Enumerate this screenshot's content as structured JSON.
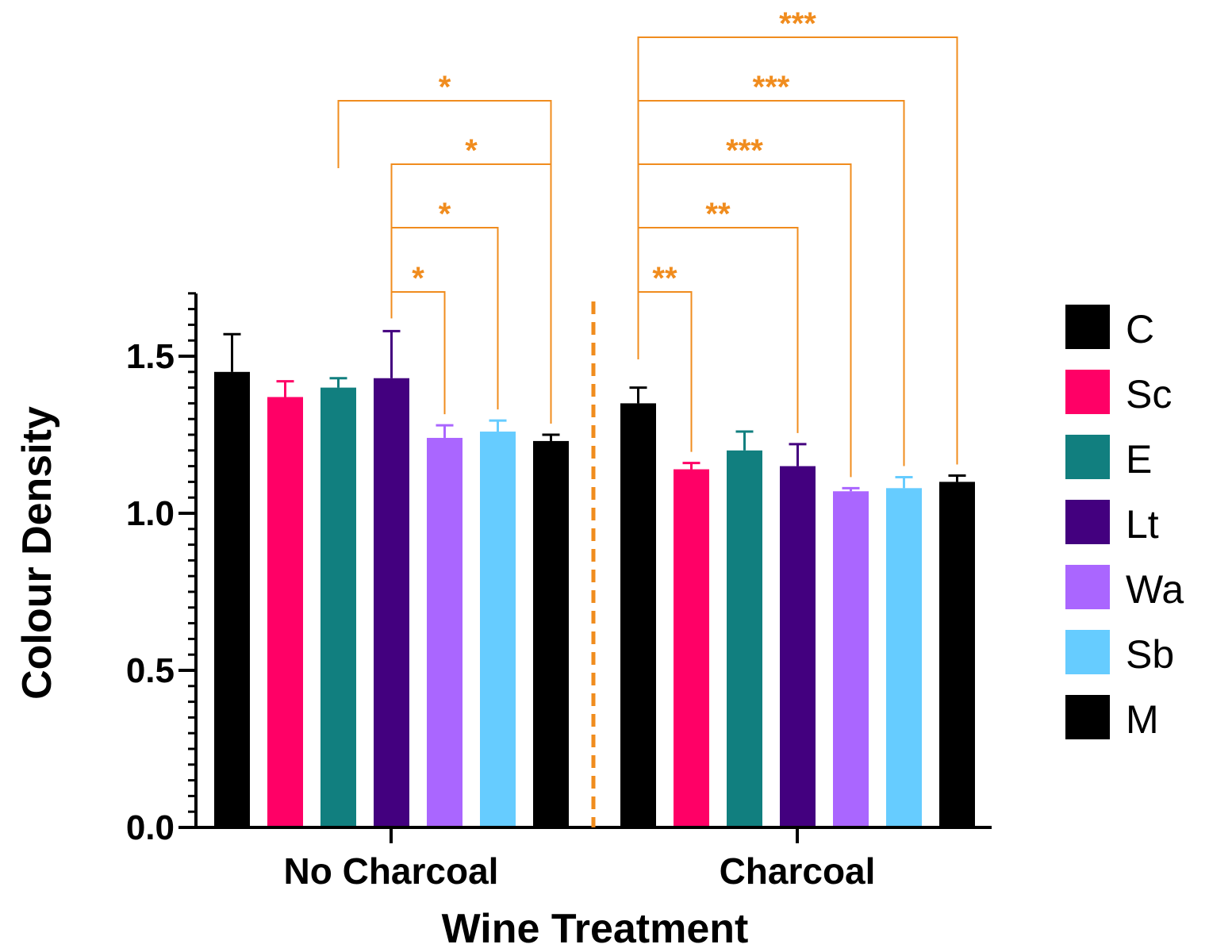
{
  "colors": {
    "C": "#000000",
    "Sc": "#ff0066",
    "E": "#117f7f",
    "Lt": "#43007f",
    "Wa": "#aa66ff",
    "Sb": "#66ccff",
    "M": "#000000",
    "significance": "#f08c1e"
  },
  "chart_data": {
    "type": "bar",
    "xlabel": "Wine Treatment",
    "ylabel": "Colour Density",
    "ylim": [
      0,
      1.7
    ],
    "yticks": [
      "0.0",
      "0.5",
      "1.0",
      "1.5"
    ],
    "categories": [
      "No Charcoal",
      "Charcoal"
    ],
    "series": [
      {
        "name": "C",
        "values": [
          1.45,
          1.35
        ],
        "errors": [
          0.12,
          0.05
        ]
      },
      {
        "name": "Sc",
        "values": [
          1.37,
          1.14
        ],
        "errors": [
          0.05,
          0.02
        ]
      },
      {
        "name": "E",
        "values": [
          1.4,
          1.2
        ],
        "errors": [
          0.03,
          0.06
        ]
      },
      {
        "name": "Lt",
        "values": [
          1.43,
          1.15
        ],
        "errors": [
          0.15,
          0.07
        ]
      },
      {
        "name": "Wa",
        "values": [
          1.24,
          1.07
        ],
        "errors": [
          0.04,
          0.01
        ]
      },
      {
        "name": "Sb",
        "values": [
          1.26,
          1.08
        ],
        "errors": [
          0.035,
          0.035
        ]
      },
      {
        "name": "M",
        "values": [
          1.23,
          1.1
        ],
        "errors": [
          0.02,
          0.02
        ]
      }
    ],
    "divider": "dashed line between groups",
    "legend_position": "right",
    "significance": [
      {
        "group": 0,
        "from": "Lt",
        "to": "Wa",
        "label": "*"
      },
      {
        "group": 0,
        "from": "Lt",
        "to": "Sb",
        "label": "*"
      },
      {
        "group": 0,
        "from": "Lt",
        "to": "M",
        "label": "*"
      },
      {
        "group": 0,
        "from": "E",
        "to": "M",
        "label": "*"
      },
      {
        "group": 1,
        "from": "C",
        "to": "Sc",
        "label": "**"
      },
      {
        "group": 1,
        "from": "C",
        "to": "Lt",
        "label": "**"
      },
      {
        "group": 1,
        "from": "C",
        "to": "Wa",
        "label": "***"
      },
      {
        "group": 1,
        "from": "C",
        "to": "Sb",
        "label": "***"
      },
      {
        "group": 1,
        "from": "C",
        "to": "M",
        "label": "***"
      }
    ]
  }
}
